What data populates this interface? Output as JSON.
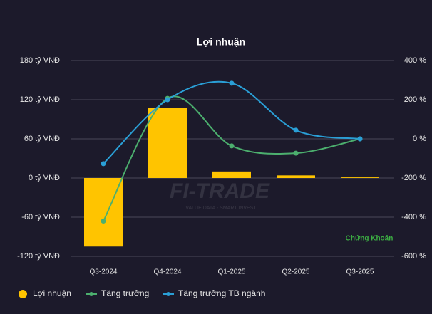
{
  "chart_data": {
    "type": "bar",
    "title": "Lợi nhuận",
    "categories": [
      "Q3-2024",
      "Q4-2024",
      "Q1-2025",
      "Q2-2025",
      "Q3-2025"
    ],
    "series": [
      {
        "name": "Lợi nhuận",
        "color": "#ffc400",
        "values": [
          -105,
          107,
          10,
          4,
          1
        ]
      },
      {
        "name": "Tăng trưởng",
        "type": "line",
        "axis": "y2",
        "color": "#4caf6e",
        "values": [
          -420,
          207,
          -36,
          -73,
          0
        ]
      },
      {
        "name": "Tăng trưởng TB ngành",
        "type": "line",
        "axis": "y2",
        "color": "#2a9fd6",
        "values": [
          -127,
          200,
          284,
          44,
          0
        ]
      }
    ],
    "ylim": [
      -120,
      180
    ],
    "yticks": [
      {
        "value": -120,
        "label": "-120 tỷ VNĐ"
      },
      {
        "value": -60,
        "label": "-60 tỷ VNĐ"
      },
      {
        "value": 0,
        "label": "0 tỷ VNĐ"
      },
      {
        "value": 60,
        "label": "60 tỷ VNĐ"
      },
      {
        "value": 120,
        "label": "120 tỷ VNĐ"
      },
      {
        "value": 180,
        "label": "180 tỷ VNĐ"
      }
    ],
    "y2lim": [
      -600,
      400
    ],
    "y2ticks": [
      {
        "value": -600,
        "label": "-600 %"
      },
      {
        "value": -400,
        "label": "-400 %"
      },
      {
        "value": -200,
        "label": "-200 %"
      },
      {
        "value": 0,
        "label": "0 %"
      },
      {
        "value": 200,
        "label": "200 %"
      },
      {
        "value": 400,
        "label": "400 %"
      }
    ],
    "grid": true,
    "legend": "bottom",
    "watermark": "FI-TRADE",
    "watermark_subtitle": "VALUE DATA - SMART INVEST",
    "logo": "Chứng Khoán"
  }
}
